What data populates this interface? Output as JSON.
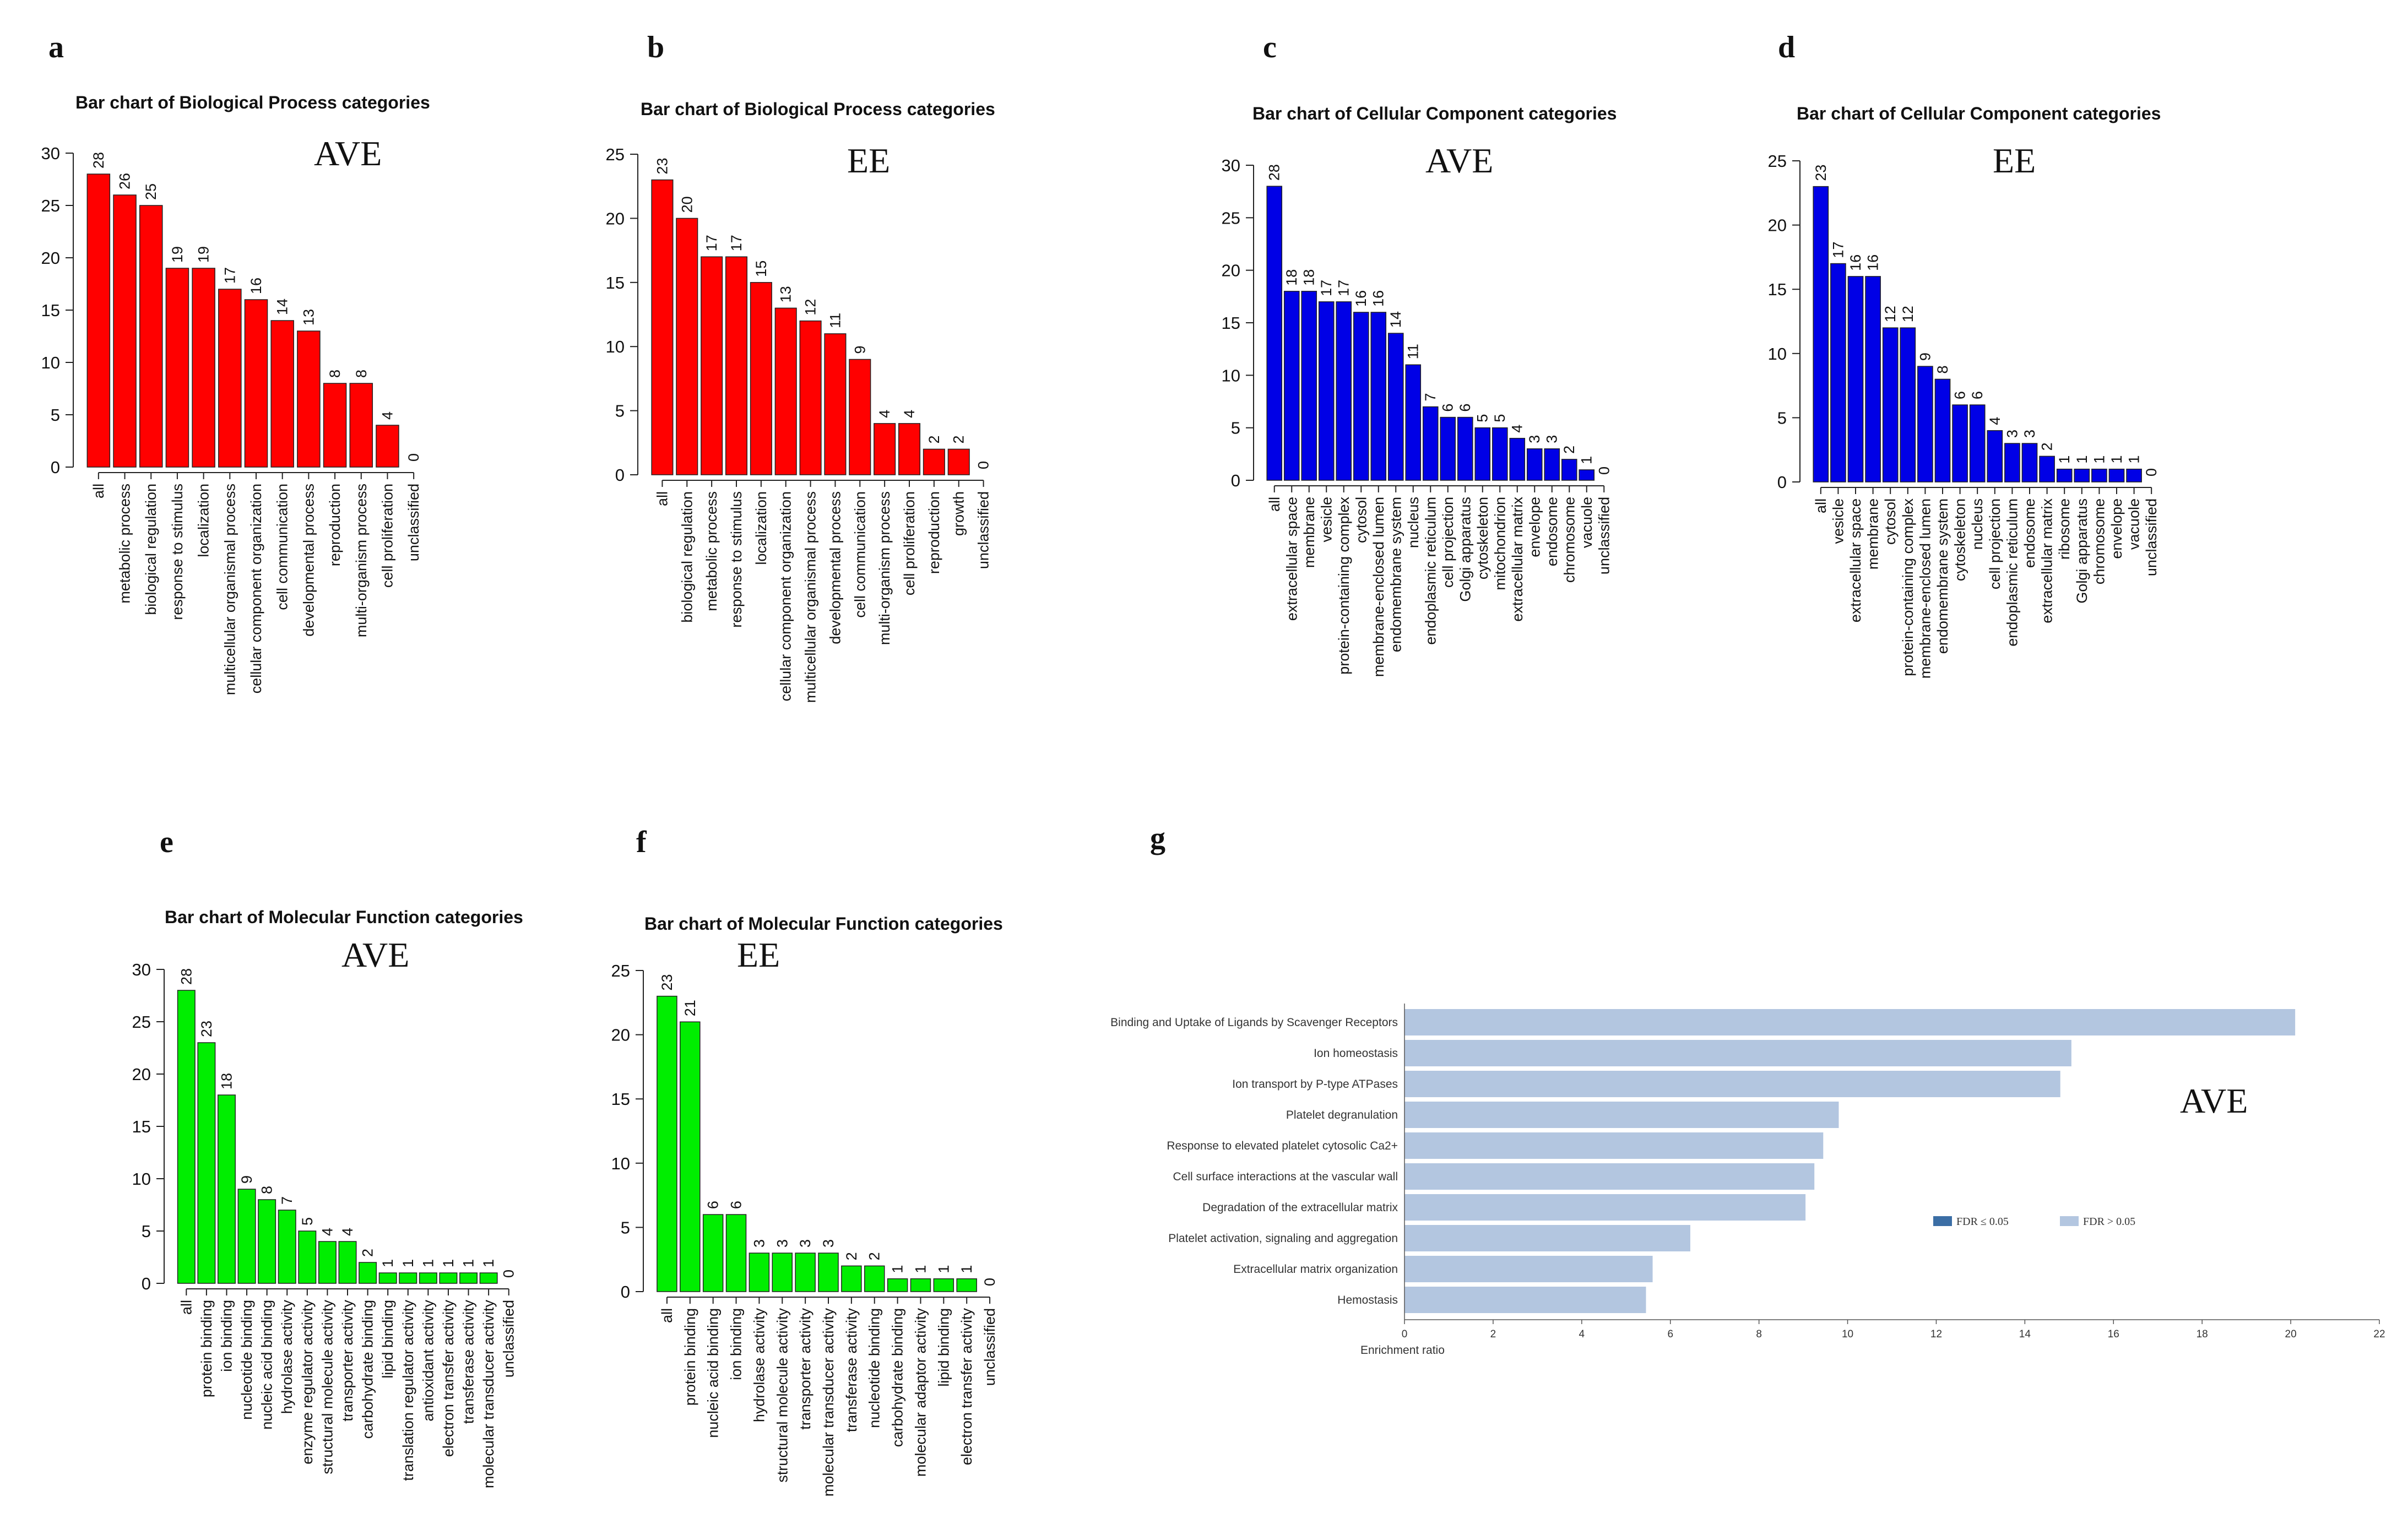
{
  "panels": [
    {
      "id": "a",
      "letter": "a",
      "title": "Bar chart of Biological Process categories",
      "group": "AVE"
    },
    {
      "id": "b",
      "letter": "b",
      "title": "Bar chart of Biological Process categories",
      "group": "EE"
    },
    {
      "id": "c",
      "letter": "c",
      "title": "Bar chart of Cellular Component categories",
      "group": "AVE"
    },
    {
      "id": "d",
      "letter": "d",
      "title": "Bar chart of Cellular Component categories",
      "group": "EE"
    },
    {
      "id": "e",
      "letter": "e",
      "title": "Bar chart of Molecular Function categories",
      "group": "AVE"
    },
    {
      "id": "f",
      "letter": "f",
      "title": "Bar chart of Molecular Function categories",
      "group": "EE"
    },
    {
      "id": "g",
      "letter": "g",
      "title": "",
      "group": "AVE"
    }
  ],
  "colors": {
    "bp": "#ff0000",
    "cc": "#0000e6",
    "mf": "#00ee00",
    "enrich": "#b3c6e0",
    "fdr_sig": "#3b6ea5",
    "axis": "#222222"
  },
  "chart_data": [
    {
      "id": "a",
      "type": "bar",
      "title": "Bar chart of Biological Process categories",
      "ylim": [
        0,
        30
      ],
      "yticks": [
        0,
        5,
        10,
        15,
        20,
        25,
        30
      ],
      "categories": [
        "all",
        "metabolic process",
        "biological regulation",
        "response to stimulus",
        "localization",
        "multicellular organismal process",
        "cellular component organization",
        "cell communication",
        "developmental process",
        "reproduction",
        "multi-organism process",
        "cell proliferation",
        "unclassified"
      ],
      "values": [
        28,
        26,
        25,
        19,
        19,
        17,
        16,
        14,
        13,
        8,
        8,
        4,
        0
      ]
    },
    {
      "id": "b",
      "type": "bar",
      "title": "Bar chart of Biological Process categories",
      "ylim": [
        0,
        25
      ],
      "yticks": [
        0,
        5,
        10,
        15,
        20,
        25
      ],
      "categories": [
        "all",
        "biological regulation",
        "metabolic process",
        "response to stimulus",
        "localization",
        "cellular component organization",
        "multicellular organismal process",
        "developmental process",
        "cell communication",
        "multi-organism process",
        "cell proliferation",
        "reproduction",
        "growth",
        "unclassified"
      ],
      "values": [
        23,
        20,
        17,
        17,
        15,
        13,
        12,
        11,
        9,
        4,
        4,
        2,
        2,
        0
      ]
    },
    {
      "id": "c",
      "type": "bar",
      "title": "Bar chart of Cellular Component categories",
      "ylim": [
        0,
        30
      ],
      "yticks": [
        0,
        5,
        10,
        15,
        20,
        25,
        30
      ],
      "categories": [
        "all",
        "extracellular space",
        "membrane",
        "vesicle",
        "protein-containing complex",
        "cytosol",
        "membrane-enclosed lumen",
        "endomembrane system",
        "nucleus",
        "endoplasmic reticulum",
        "cell projection",
        "Golgi apparatus",
        "cytoskeleton",
        "mitochondrion",
        "extracellular matrix",
        "envelope",
        "endosome",
        "chromosome",
        "vacuole",
        "unclassified"
      ],
      "values": [
        28,
        18,
        18,
        17,
        17,
        16,
        16,
        14,
        11,
        7,
        6,
        6,
        5,
        5,
        4,
        3,
        3,
        2,
        1,
        0
      ]
    },
    {
      "id": "d",
      "type": "bar",
      "title": "Bar chart of Cellular Component categories",
      "ylim": [
        0,
        25
      ],
      "yticks": [
        0,
        5,
        10,
        15,
        20,
        25
      ],
      "categories": [
        "all",
        "vesicle",
        "extracellular space",
        "membrane",
        "cytosol",
        "protein-containing complex",
        "membrane-enclosed lumen",
        "endomembrane system",
        "cytoskeleton",
        "nucleus",
        "cell projection",
        "endoplasmic reticulum",
        "endosome",
        "extracellular matrix",
        "ribosome",
        "Golgi apparatus",
        "chromosome",
        "envelope",
        "vacuole",
        "unclassified"
      ],
      "values": [
        23,
        17,
        16,
        16,
        12,
        12,
        9,
        8,
        6,
        6,
        4,
        3,
        3,
        2,
        1,
        1,
        1,
        1,
        1,
        0
      ]
    },
    {
      "id": "e",
      "type": "bar",
      "title": "Bar chart of Molecular Function categories",
      "ylim": [
        0,
        30
      ],
      "yticks": [
        0,
        5,
        10,
        15,
        20,
        25,
        30
      ],
      "categories": [
        "all",
        "protein binding",
        "ion binding",
        "nucleotide binding",
        "nucleic acid binding",
        "hydrolase activity",
        "enzyme regulator activity",
        "structural molecule activity",
        "transporter activity",
        "carbohydrate binding",
        "lipid binding",
        "translation regulator activity",
        "antioxidant activity",
        "electron transfer activity",
        "transferase activity",
        "molecular transducer activity",
        "unclassified"
      ],
      "values": [
        28,
        23,
        18,
        9,
        8,
        7,
        5,
        4,
        4,
        2,
        1,
        1,
        1,
        1,
        1,
        1,
        0
      ]
    },
    {
      "id": "f",
      "type": "bar",
      "title": "Bar chart of Molecular Function categories",
      "ylim": [
        0,
        25
      ],
      "yticks": [
        0,
        5,
        10,
        15,
        20,
        25
      ],
      "categories": [
        "all",
        "protein binding",
        "nucleic acid binding",
        "ion binding",
        "hydrolase activity",
        "structural molecule activity",
        "transporter activity",
        "molecular transducer activity",
        "transferase activity",
        "nucleotide binding",
        "carbohydrate binding",
        "molecular adaptor activity",
        "lipid binding",
        "electron transfer activity",
        "unclassified"
      ],
      "values": [
        23,
        21,
        6,
        6,
        3,
        3,
        3,
        3,
        2,
        2,
        1,
        1,
        1,
        1,
        0
      ]
    },
    {
      "id": "g",
      "type": "bar",
      "orientation": "horizontal",
      "xlabel": "Enrichment ratio",
      "xlim": [
        0,
        22
      ],
      "xticks": [
        0,
        2,
        4,
        6,
        8,
        10,
        12,
        14,
        16,
        18,
        20,
        22
      ],
      "categories": [
        "Binding and Uptake of Ligands by Scavenger Receptors",
        "Ion homeostasis",
        "Ion transport by P-type ATPases",
        "Platelet degranulation",
        "Response to elevated platelet cytosolic Ca2+",
        "Cell surface interactions at the vascular wall",
        "Degradation of the extracellular matrix",
        "Platelet activation, signaling and aggregation",
        "Extracellular matrix organization",
        "Hemostasis"
      ],
      "values": [
        20.1,
        15.05,
        14.8,
        9.8,
        9.45,
        9.25,
        9.05,
        6.45,
        5.6,
        5.45
      ],
      "legend": [
        "FDR ≤ 0.05",
        "FDR > 0.05"
      ]
    }
  ]
}
